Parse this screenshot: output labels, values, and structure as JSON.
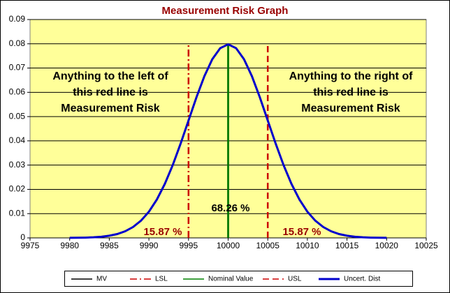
{
  "chart_data": {
    "type": "line",
    "title": "Measurement Risk Graph",
    "xlim": [
      9975,
      10025
    ],
    "xticks": [
      9975,
      9980,
      9985,
      9990,
      9995,
      10000,
      10005,
      10010,
      10015,
      10020,
      10025
    ],
    "ylim": [
      0,
      0.09
    ],
    "yticks": [
      0,
      0.01,
      0.02,
      0.03,
      0.04,
      0.05,
      0.06,
      0.07,
      0.08,
      0.09
    ],
    "grid": true,
    "plot_background": "#ffff99",
    "legend": "bottom",
    "series": [
      {
        "name": "MV",
        "color": "#000000",
        "dash": "solid",
        "x": [
          10000,
          10000
        ],
        "values": [
          0,
          0.08
        ]
      },
      {
        "name": "LSL",
        "color": "#cc0000",
        "dash": "dashdot",
        "x": [
          9995,
          9995
        ],
        "values": [
          0,
          0.08
        ]
      },
      {
        "name": "Nominal Value",
        "color": "#008000",
        "dash": "solid",
        "x": [
          10000,
          10000
        ],
        "values": [
          0,
          0.08
        ]
      },
      {
        "name": "USL",
        "color": "#cc0000",
        "dash": "dashed",
        "x": [
          10005,
          10005
        ],
        "values": [
          0,
          0.08
        ]
      },
      {
        "name": "Uncert. Dist",
        "color": "#0000cc",
        "dash": "solid",
        "x": [
          9980,
          9981,
          9982,
          9983,
          9984,
          9985,
          9986,
          9987,
          9988,
          9989,
          9990,
          9991,
          9992,
          9993,
          9994,
          9995,
          9996,
          9997,
          9998,
          9999,
          10000,
          10001,
          10002,
          10003,
          10004,
          10005,
          10006,
          10007,
          10008,
          10009,
          10010,
          10011,
          10012,
          10013,
          10014,
          10015,
          10016,
          10017,
          10018,
          10019,
          10020
        ],
        "values": [
          3e-05,
          6e-05,
          0.00012,
          0.00025,
          0.00048,
          0.00089,
          0.00158,
          0.00272,
          0.00448,
          0.00709,
          0.0108,
          0.01579,
          0.02218,
          0.02995,
          0.03884,
          0.04839,
          0.05794,
          0.06664,
          0.07365,
          0.07821,
          0.07979,
          0.07821,
          0.07365,
          0.06664,
          0.05794,
          0.04839,
          0.03884,
          0.02995,
          0.02218,
          0.01579,
          0.0108,
          0.00709,
          0.00448,
          0.00272,
          0.00158,
          0.00089,
          0.00048,
          0.00025,
          0.00012,
          6e-05,
          3e-05
        ]
      }
    ],
    "annotations": [
      {
        "lines": [
          "Anything to the left of",
          "this red line is",
          "Measurement Risk"
        ],
        "color": "#000000"
      },
      {
        "lines": [
          "Anything to the right of",
          "this red line is",
          "Measurement Risk"
        ],
        "color": "#000000"
      },
      {
        "lines": [
          "68.26 %"
        ],
        "color": "#000000"
      },
      {
        "lines": [
          "15.87 %"
        ],
        "color": "#990000"
      },
      {
        "lines": [
          "15.87 %"
        ],
        "color": "#990000"
      }
    ]
  }
}
